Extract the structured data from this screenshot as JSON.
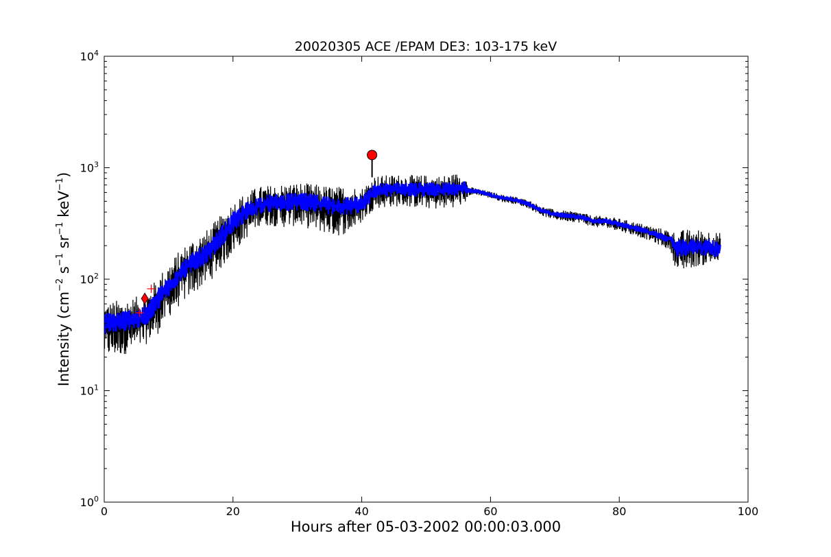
{
  "chart_data": {
    "type": "line",
    "title": "20020305 ACE /EPAM DE3: 103-175 keV",
    "xlabel": "Hours after 05-03-2002 00:00:03.000",
    "ylabel": {
      "prefix": "Intensity (cm",
      "sup1": "−2",
      "part2": " s",
      "sup2": "−1",
      "part3": " sr",
      "sup3": "−1",
      "part4": " keV",
      "sup4": "−1",
      "suffix": ")"
    },
    "xlim": [
      0,
      100
    ],
    "ylim": [
      1,
      10000
    ],
    "yscale": "log",
    "x_ticks": [
      "0",
      "20",
      "40",
      "60",
      "80",
      "100"
    ],
    "x_tick_values": [
      0,
      20,
      40,
      60,
      80,
      100
    ],
    "y_ticks": [
      {
        "base": "10",
        "exp": "0",
        "value": 1
      },
      {
        "base": "10",
        "exp": "1",
        "value": 10
      },
      {
        "base": "10",
        "exp": "2",
        "value": 100
      },
      {
        "base": "10",
        "exp": "3",
        "value": 1000
      },
      {
        "base": "10",
        "exp": "4",
        "value": 10000
      }
    ],
    "grid": false,
    "series": [
      {
        "color": "#000000",
        "x": [
          0,
          2,
          4,
          6,
          7,
          8,
          10,
          12,
          14,
          16,
          18,
          20,
          22,
          24,
          26,
          28,
          30,
          32,
          34,
          36,
          38,
          40,
          42,
          44,
          46,
          48,
          50,
          52,
          54,
          56,
          56.5,
          58,
          60,
          62,
          64,
          66,
          68,
          70,
          72,
          74,
          76,
          78,
          80,
          82,
          84,
          86,
          88,
          89,
          90,
          92,
          94,
          95.7
        ],
        "y": [
          38,
          40,
          42,
          45,
          50,
          62,
          85,
          115,
          145,
          170,
          230,
          320,
          400,
          460,
          480,
          490,
          500,
          490,
          470,
          450,
          460,
          470,
          620,
          640,
          650,
          640,
          640,
          630,
          650,
          680,
          620,
          610,
          570,
          530,
          510,
          470,
          410,
          380,
          370,
          360,
          330,
          330,
          310,
          290,
          270,
          245,
          225,
          175,
          190,
          195,
          190,
          185
        ],
        "y_high": [
          62,
          65,
          68,
          72,
          80,
          100,
          140,
          190,
          240,
          280,
          370,
          500,
          600,
          680,
          700,
          720,
          740,
          720,
          700,
          680,
          690,
          660,
          850,
          860,
          870,
          860,
          860,
          850,
          880,
          920,
          680,
          650,
          610,
          570,
          550,
          510,
          450,
          420,
          410,
          400,
          370,
          370,
          350,
          330,
          310,
          290,
          275,
          260,
          280,
          280,
          275,
          260
        ],
        "y_low": [
          20,
          20,
          22,
          24,
          28,
          30,
          45,
          60,
          75,
          90,
          120,
          170,
          230,
          300,
          300,
          290,
          300,
          280,
          260,
          240,
          260,
          320,
          430,
          440,
          450,
          440,
          430,
          420,
          440,
          460,
          560,
          570,
          530,
          490,
          470,
          430,
          370,
          340,
          330,
          320,
          290,
          290,
          270,
          250,
          230,
          205,
          180,
          110,
          120,
          130,
          135,
          140
        ]
      },
      {
        "color": "#0000ff",
        "x": [
          0,
          2,
          4,
          6,
          7,
          8,
          10,
          12,
          14,
          16,
          18,
          20,
          22,
          24,
          26,
          28,
          30,
          32,
          34,
          36,
          38,
          40,
          42,
          44,
          46,
          48,
          50,
          52,
          54,
          56,
          56.5,
          58,
          60,
          62,
          64,
          66,
          68,
          70,
          72,
          74,
          76,
          78,
          80,
          82,
          84,
          86,
          88,
          89,
          90,
          92,
          94,
          95.7
        ],
        "y": [
          40,
          42,
          44,
          46,
          52,
          64,
          88,
          118,
          148,
          172,
          235,
          325,
          405,
          465,
          485,
          495,
          505,
          495,
          475,
          455,
          462,
          475,
          625,
          645,
          655,
          645,
          645,
          635,
          655,
          685,
          625,
          612,
          572,
          532,
          512,
          472,
          412,
          382,
          372,
          362,
          332,
          332,
          312,
          292,
          272,
          247,
          227,
          190,
          195,
          198,
          192,
          188
        ],
        "y_high": [
          50,
          52,
          54,
          56,
          64,
          78,
          108,
          145,
          180,
          210,
          290,
          400,
          490,
          560,
          580,
          590,
          600,
          590,
          570,
          550,
          555,
          560,
          720,
          740,
          750,
          740,
          740,
          730,
          755,
          790,
          660,
          640,
          598,
          556,
          535,
          494,
          432,
          402,
          392,
          382,
          350,
          350,
          330,
          310,
          290,
          265,
          245,
          225,
          230,
          232,
          228,
          222
        ],
        "y_low": [
          32,
          33,
          35,
          37,
          41,
          50,
          70,
          95,
          118,
          138,
          188,
          262,
          330,
          380,
          395,
          405,
          410,
          400,
          385,
          370,
          375,
          395,
          530,
          548,
          558,
          548,
          548,
          538,
          555,
          580,
          590,
          585,
          545,
          508,
          489,
          450,
          392,
          362,
          352,
          342,
          314,
          314,
          294,
          274,
          254,
          229,
          209,
          155,
          160,
          165,
          158,
          155
        ]
      }
    ],
    "markers": [
      {
        "shape": "circle",
        "x": 41.6,
        "y": 1300,
        "color": "#ff0000"
      },
      {
        "shape": "diamond",
        "x": 6.3,
        "y": 67,
        "color": "#ff0000"
      },
      {
        "shape": "plus",
        "x": 5.5,
        "y": 50,
        "color": "#ff0000"
      },
      {
        "shape": "plus",
        "x": 7.3,
        "y": 82,
        "color": "#ff0000"
      }
    ],
    "peak_stem": {
      "x": 41.6,
      "y_from": 820,
      "y_to": 1250
    }
  }
}
